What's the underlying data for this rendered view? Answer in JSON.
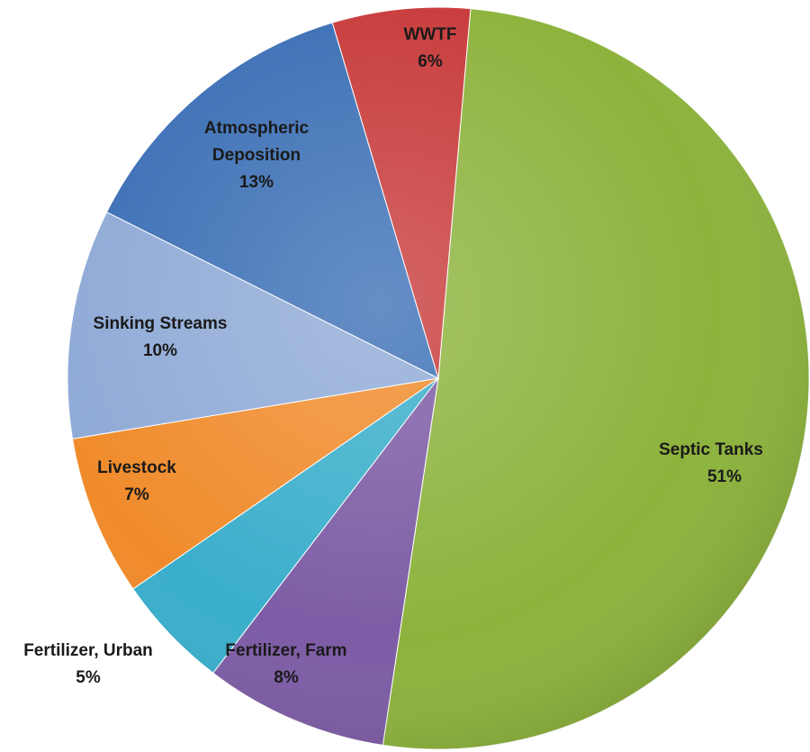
{
  "chart_data": {
    "type": "pie",
    "title": "",
    "slices": [
      {
        "label": "Septic Tanks",
        "value": 51,
        "value_label": "51%",
        "color": "#8db33d"
      },
      {
        "label": "Fertilizer, Farm",
        "value": 8,
        "value_label": "8%",
        "color": "#7d5ca5"
      },
      {
        "label": "Fertilizer, Urban",
        "value": 5,
        "value_label": "5%",
        "color": "#3aaecb"
      },
      {
        "label": "Livestock",
        "value": 7,
        "value_label": "7%",
        "color": "#f08b2b"
      },
      {
        "label": "Sinking Streams",
        "value": 10,
        "value_label": "10%",
        "color": "#8faad6"
      },
      {
        "label": "Atmospheric Deposition",
        "value": 13,
        "value_label": "13%",
        "color": "#3b6fb5"
      },
      {
        "label": "WWTF",
        "value": 6,
        "value_label": "6%",
        "color": "#c83a3a"
      }
    ]
  }
}
